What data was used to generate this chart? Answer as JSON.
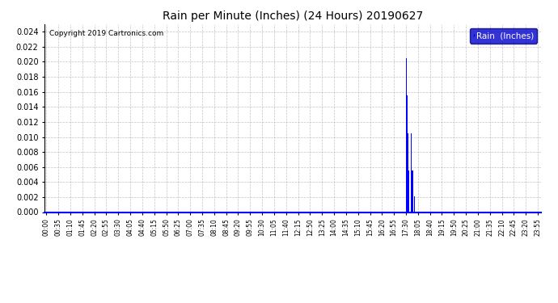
{
  "title": "Rain per Minute (Inches) (24 Hours) 20190627",
  "copyright": "Copyright 2019 Cartronics.com",
  "legend_label": "Rain  (Inches)",
  "legend_bg": "#0000cc",
  "legend_text_color": "#ffffff",
  "bar_color": "#0000ff",
  "bg_color": "#ffffff",
  "plot_bg_color": "#ffffff",
  "grid_color": "#aaaaaa",
  "ylim": [
    0.0,
    0.025
  ],
  "yticks": [
    0.0,
    0.002,
    0.004,
    0.006,
    0.008,
    0.01,
    0.012,
    0.014,
    0.016,
    0.018,
    0.02,
    0.022,
    0.024
  ],
  "total_minutes": 1440,
  "rain_events": [
    {
      "minute": 1050,
      "value": 0.0205
    },
    {
      "minute": 1051,
      "value": 0.0205
    },
    {
      "minute": 1052,
      "value": 0.0205
    },
    {
      "minute": 1053,
      "value": 0.0155
    },
    {
      "minute": 1054,
      "value": 0.0155
    },
    {
      "minute": 1055,
      "value": 0.0105
    },
    {
      "minute": 1056,
      "value": 0.0105
    },
    {
      "minute": 1057,
      "value": 0.0105
    },
    {
      "minute": 1058,
      "value": 0.0055
    },
    {
      "minute": 1059,
      "value": 0.0055
    },
    {
      "minute": 1065,
      "value": 0.0105
    },
    {
      "minute": 1066,
      "value": 0.0105
    },
    {
      "minute": 1067,
      "value": 0.0105
    },
    {
      "minute": 1068,
      "value": 0.0055
    },
    {
      "minute": 1069,
      "value": 0.0055
    },
    {
      "minute": 1070,
      "value": 0.0055
    },
    {
      "minute": 1075,
      "value": 0.0021
    },
    {
      "minute": 1076,
      "value": 0.0021
    }
  ],
  "xtick_interval_minutes": 35,
  "figsize": [
    6.9,
    3.75
  ],
  "dpi": 100,
  "border_color": "#000000",
  "bottom_spine_color": "#0000ff"
}
